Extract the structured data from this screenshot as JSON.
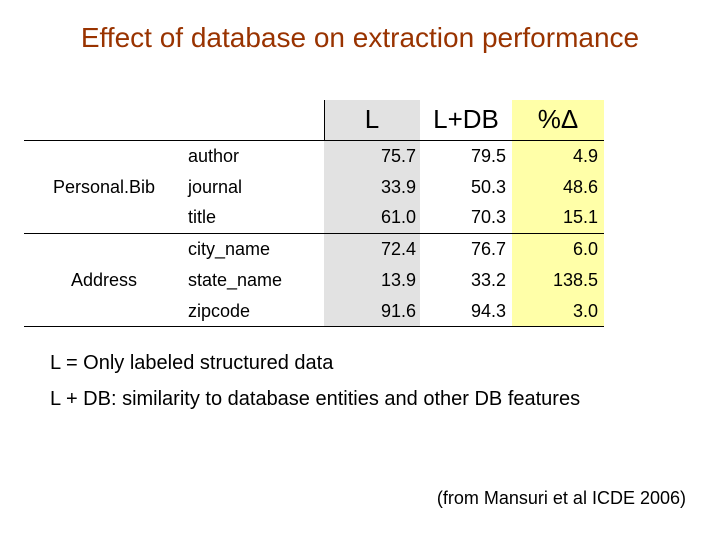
{
  "title": "Effect of database on extraction performance",
  "header": {
    "col_l": "L",
    "col_ldb": "L+DB",
    "col_delta": "%Δ"
  },
  "groups": [
    {
      "name": "Personal.Bib",
      "rows": [
        {
          "field": "author",
          "l": "75.7",
          "ldb": "79.5",
          "delta": "4.9"
        },
        {
          "field": "journal",
          "l": "33.9",
          "ldb": "50.3",
          "delta": "48.6"
        },
        {
          "field": "title",
          "l": "61.0",
          "ldb": "70.3",
          "delta": "15.1"
        }
      ]
    },
    {
      "name": "Address",
      "rows": [
        {
          "field": "city_name",
          "l": "72.4",
          "ldb": "76.7",
          "delta": "6.0"
        },
        {
          "field": "state_name",
          "l": "13.9",
          "ldb": "33.2",
          "delta": "138.5"
        },
        {
          "field": "zipcode",
          "l": "91.6",
          "ldb": "94.3",
          "delta": "3.0"
        }
      ]
    }
  ],
  "notes": [
    "L = Only labeled structured data",
    "L + DB: similarity to database entities and other DB features"
  ],
  "citation": "(from Mansuri et al ICDE 2006)",
  "colors": {
    "title": "#993300",
    "l_column": "#e2e2e2",
    "delta_column": "#ffffa8"
  }
}
